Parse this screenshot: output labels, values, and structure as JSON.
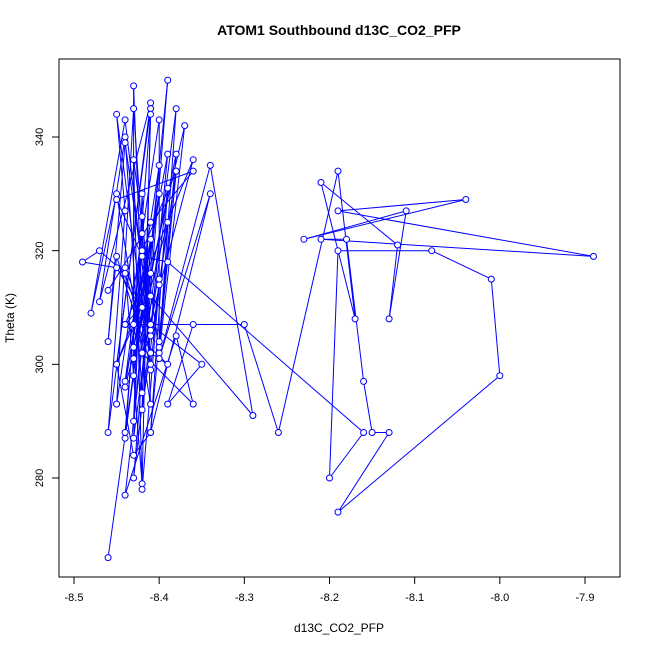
{
  "chart_data": {
    "type": "scatter",
    "connected": true,
    "title": "ATOM1 Southbound d13C_CO2_PFP",
    "xlabel": "d13C_CO2_PFP",
    "ylabel": "Theta (K)",
    "xlim": [
      -8.5,
      -7.85
    ],
    "ylim": [
      265,
      352
    ],
    "xticks": [
      -8.5,
      -8.4,
      -8.3,
      -8.2,
      -8.1,
      -8.0,
      -7.9
    ],
    "xtick_labels": [
      "-8.5",
      "-8.4",
      "-8.3",
      "-8.2",
      "-8.1",
      "-8.0",
      "-7.9"
    ],
    "yticks": [
      280,
      300,
      320,
      340
    ],
    "ytick_labels": [
      "280",
      "300",
      "320",
      "340"
    ],
    "color": "#0000ff",
    "marker": "open-circle",
    "points": [
      [
        -8.46,
        266
      ],
      [
        -8.43,
        298
      ],
      [
        -8.43,
        349
      ],
      [
        -8.42,
        310
      ],
      [
        -8.45,
        344
      ],
      [
        -8.44,
        327
      ],
      [
        -8.46,
        288
      ],
      [
        -8.41,
        346
      ],
      [
        -8.47,
        311
      ],
      [
        -8.44,
        340
      ],
      [
        -8.42,
        295
      ],
      [
        -8.39,
        350
      ],
      [
        -8.43,
        290
      ],
      [
        -8.42,
        330
      ],
      [
        -8.41,
        293
      ],
      [
        -8.45,
        330
      ],
      [
        -8.48,
        309
      ],
      [
        -8.44,
        343
      ],
      [
        -8.41,
        305
      ],
      [
        -8.44,
        317
      ],
      [
        -8.42,
        279
      ],
      [
        -8.41,
        345
      ],
      [
        -8.45,
        300
      ],
      [
        -8.43,
        307
      ],
      [
        -8.41,
        322
      ],
      [
        -8.44,
        287
      ],
      [
        -8.42,
        326
      ],
      [
        -8.41,
        306
      ],
      [
        -8.39,
        337
      ],
      [
        -8.44,
        297
      ],
      [
        -8.42,
        320
      ],
      [
        -8.38,
        334
      ],
      [
        -8.4,
        314
      ],
      [
        -8.42,
        278
      ],
      [
        -8.43,
        336
      ],
      [
        -8.4,
        302
      ],
      [
        -8.37,
        342
      ],
      [
        -8.43,
        303
      ],
      [
        -8.4,
        330
      ],
      [
        -8.44,
        288
      ],
      [
        -8.41,
        344
      ],
      [
        -8.42,
        292
      ],
      [
        -8.39,
        325
      ],
      [
        -8.44,
        296
      ],
      [
        -8.4,
        335
      ],
      [
        -8.43,
        280
      ],
      [
        -8.39,
        331
      ],
      [
        -8.41,
        288
      ],
      [
        -8.38,
        337
      ],
      [
        -8.43,
        301
      ],
      [
        -8.4,
        315
      ],
      [
        -8.41,
        299
      ],
      [
        -8.42,
        323
      ],
      [
        -8.43,
        287
      ],
      [
        -8.38,
        345
      ],
      [
        -8.4,
        303
      ],
      [
        -8.38,
        334
      ],
      [
        -8.4,
        304
      ],
      [
        -8.4,
        343
      ],
      [
        -8.45,
        293
      ],
      [
        -8.43,
        345
      ],
      [
        -8.41,
        300
      ],
      [
        -8.45,
        319
      ],
      [
        -8.46,
        304
      ],
      [
        -8.44,
        339
      ],
      [
        -8.41,
        307
      ],
      [
        -8.45,
        317
      ],
      [
        -8.49,
        318
      ],
      [
        -8.47,
        320
      ],
      [
        -8.44,
        316
      ],
      [
        -8.41,
        302
      ],
      [
        -8.39,
        300
      ],
      [
        -8.44,
        307
      ],
      [
        -8.36,
        336
      ],
      [
        -8.42,
        302
      ],
      [
        -8.36,
        293
      ],
      [
        -8.38,
        305
      ],
      [
        -8.44,
        277
      ],
      [
        -8.41,
        316
      ],
      [
        -8.45,
        300
      ],
      [
        -8.43,
        284
      ],
      [
        -8.41,
        288
      ],
      [
        -8.34,
        330
      ],
      [
        -8.4,
        301
      ],
      [
        -8.34,
        335
      ],
      [
        -8.29,
        291
      ],
      [
        -8.41,
        312
      ],
      [
        -8.44,
        307
      ],
      [
        -8.36,
        307
      ],
      [
        -8.39,
        293
      ],
      [
        -8.35,
        300
      ],
      [
        -8.41,
        307
      ],
      [
        -8.3,
        307
      ],
      [
        -8.26,
        288
      ],
      [
        -8.19,
        334
      ],
      [
        -8.17,
        308
      ],
      [
        -8.21,
        332
      ],
      [
        -8.12,
        321
      ],
      [
        -8.13,
        308
      ],
      [
        -8.11,
        327
      ],
      [
        -8.23,
        322
      ],
      [
        -8.04,
        329
      ],
      [
        -8.19,
        327
      ],
      [
        -7.89,
        319
      ],
      [
        -8.21,
        322
      ],
      [
        -8.18,
        322
      ],
      [
        -8.16,
        297
      ],
      [
        -8.15,
        288
      ],
      [
        -8.13,
        288
      ],
      [
        -8.19,
        274
      ],
      [
        -8.0,
        298
      ],
      [
        -8.01,
        315
      ],
      [
        -8.08,
        320
      ],
      [
        -8.19,
        320
      ],
      [
        -8.2,
        280
      ],
      [
        -8.16,
        288
      ],
      [
        -8.39,
        318
      ],
      [
        -8.42,
        319
      ],
      [
        -8.45,
        329
      ],
      [
        -8.36,
        334
      ],
      [
        -8.41,
        325
      ],
      [
        -8.46,
        313
      ]
    ]
  }
}
